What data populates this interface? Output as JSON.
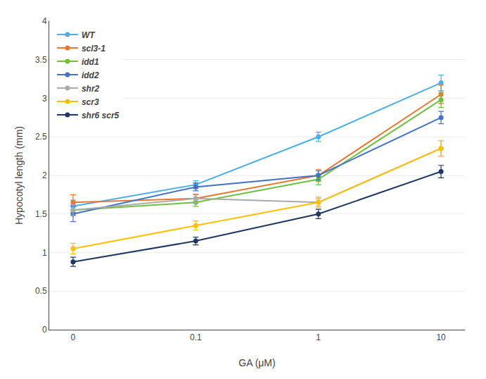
{
  "chart_data": {
    "type": "line",
    "xlabel": "GA (μM)",
    "ylabel": "Hypocotyl length (mm)",
    "categories": [
      "0",
      "0.1",
      "1",
      "10"
    ],
    "series": [
      {
        "name": "WT",
        "color": "#4DAFEA",
        "values": [
          1.6,
          1.88,
          2.5,
          3.2
        ],
        "errors": [
          0.08,
          0.05,
          0.06,
          0.1
        ]
      },
      {
        "name": "scl3-1",
        "color": "#E87830",
        "values": [
          1.65,
          1.7,
          2.0,
          3.05
        ],
        "errors": [
          0.1,
          0.05,
          0.08,
          0.12
        ]
      },
      {
        "name": "idd1",
        "color": "#70C040",
        "values": [
          1.55,
          1.65,
          1.95,
          2.98
        ],
        "errors": [
          0.07,
          0.05,
          0.07,
          0.1
        ]
      },
      {
        "name": "idd2",
        "color": "#4472C4",
        "values": [
          1.5,
          1.85,
          2.0,
          2.75
        ],
        "errors": [
          0.1,
          0.05,
          0.06,
          0.08
        ]
      },
      {
        "name": "shr2",
        "color": "#AAAAAA",
        "values": [
          1.55,
          1.7,
          1.65,
          2.35
        ],
        "errors": [
          0.07,
          0.06,
          0.05,
          0.1
        ]
      },
      {
        "name": "scr3",
        "color": "#FFC000",
        "values": [
          1.05,
          1.35,
          1.65,
          2.35
        ],
        "errors": [
          0.07,
          0.06,
          0.07,
          0.1
        ]
      },
      {
        "name": "shr6 scr5",
        "color": "#1F3864",
        "values": [
          0.88,
          1.15,
          1.5,
          2.05
        ],
        "errors": [
          0.06,
          0.05,
          0.06,
          0.08
        ]
      }
    ],
    "ylim": [
      0,
      4
    ],
    "yticks": [
      0,
      0.5,
      1,
      1.5,
      2,
      2.5,
      3,
      3.5,
      4
    ],
    "grid": true,
    "legend": "upper left",
    "marker": "circle"
  }
}
